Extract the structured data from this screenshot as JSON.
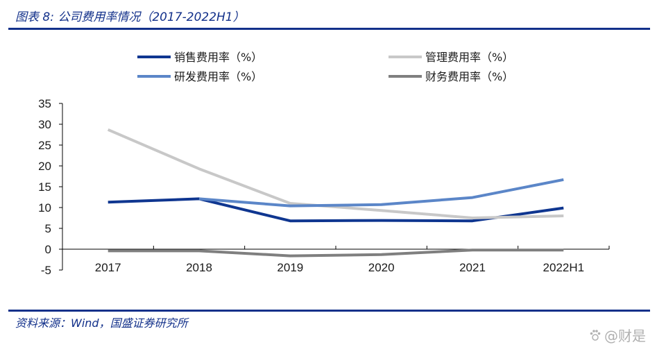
{
  "header": {
    "title": "图表 8:  公司费用率情况（2017-2022H1）"
  },
  "footer": {
    "source": "资料来源：Wind，国盛证券研究所",
    "watermark": "@财是"
  },
  "chart_data": {
    "type": "line",
    "title": "",
    "xlabel": "",
    "ylabel": "",
    "categories": [
      "2017",
      "2018",
      "2019",
      "2020",
      "2021",
      "2022H1"
    ],
    "ylim": [
      -5,
      35
    ],
    "yticks": [
      "35",
      "30",
      "25",
      "20",
      "15",
      "10",
      "5",
      "0",
      "-5"
    ],
    "legend_position": "top",
    "series": [
      {
        "name": "销售费用率（%）",
        "color": "#0f3690",
        "values": [
          11.3,
          12.1,
          6.8,
          6.9,
          6.8,
          9.9
        ]
      },
      {
        "name": "管理费用率（%）",
        "color": "#c8c8c8",
        "values": [
          28.7,
          19.3,
          11.0,
          9.3,
          7.5,
          8.0
        ]
      },
      {
        "name": "研发费用率（%）",
        "color": "#5b86c8",
        "values": [
          null,
          12.1,
          10.4,
          10.7,
          12.4,
          16.7
        ]
      },
      {
        "name": "财务费用率（%）",
        "color": "#7f7f7f",
        "values": [
          -0.4,
          -0.4,
          -1.6,
          -1.3,
          -0.2,
          -0.2
        ]
      }
    ]
  }
}
